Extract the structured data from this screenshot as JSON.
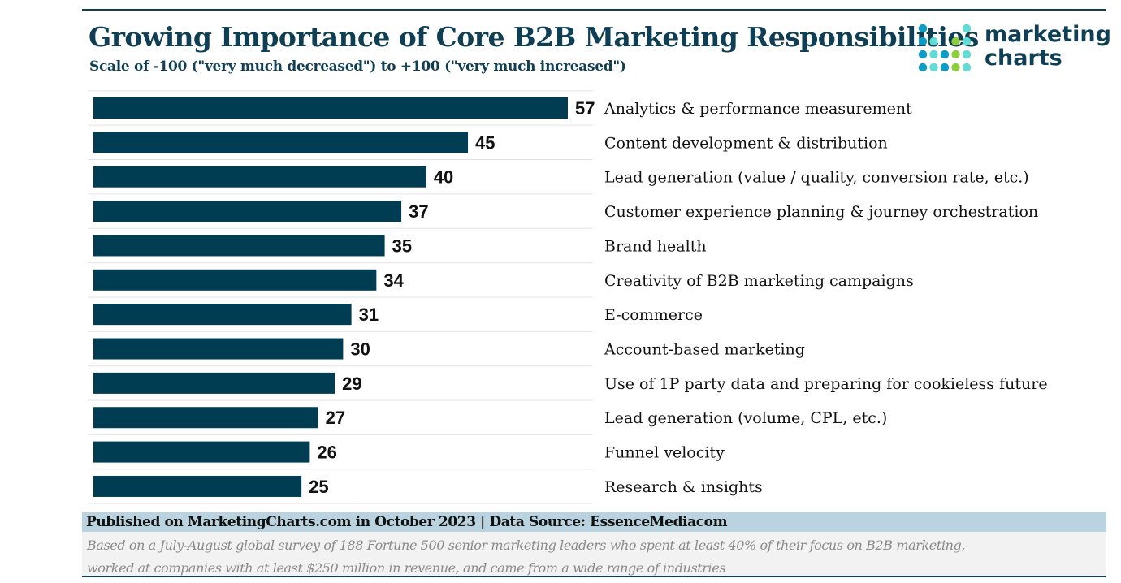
{
  "header": {
    "title": "Growing Importance of Core B2B Marketing Responsibilities",
    "subtitle": "Scale of -100 (\"very much decreased\") to +100 (\"very much increased\")"
  },
  "logo": {
    "line1": "marketing",
    "line2": "charts",
    "colors": [
      "#0b9cc7",
      "#62dad6",
      "#8dcd3d"
    ]
  },
  "chart_data": {
    "type": "bar",
    "orientation": "horizontal",
    "title": "Growing Importance of Core B2B Marketing Responsibilities",
    "subtitle": "Scale of -100 (\"very much decreased\") to +100 (\"very much increased\")",
    "categories": [
      "Analytics & performance measurement",
      "Content development & distribution",
      "Lead generation (value / quality, conversion rate, etc.)",
      "Customer experience planning & journey orchestration",
      "Brand health",
      "Creativity of B2B marketing campaigns",
      "E-commerce",
      "Account-based marketing",
      "Use of 1P party data and preparing for cookieless future",
      "Lead generation (volume, CPL, etc.)",
      "Funnel velocity",
      "Research & insights"
    ],
    "values": [
      57,
      45,
      40,
      37,
      35,
      34,
      31,
      30,
      29,
      27,
      26,
      25
    ],
    "xlim": [
      0,
      57
    ],
    "bar_color": "#003d52",
    "grid": false,
    "legend": "none"
  },
  "footer": {
    "published": "Published on MarketingCharts.com in October 2023 | Data Source: EssenceMediacom",
    "note_line1": "Based on a July-August global survey of 188 Fortune 500 senior marketing leaders who spent at least 40% of their focus on B2B marketing,",
    "note_line2": "worked at companies with at least $250 million in revenue, and came from a wide range of industries"
  }
}
